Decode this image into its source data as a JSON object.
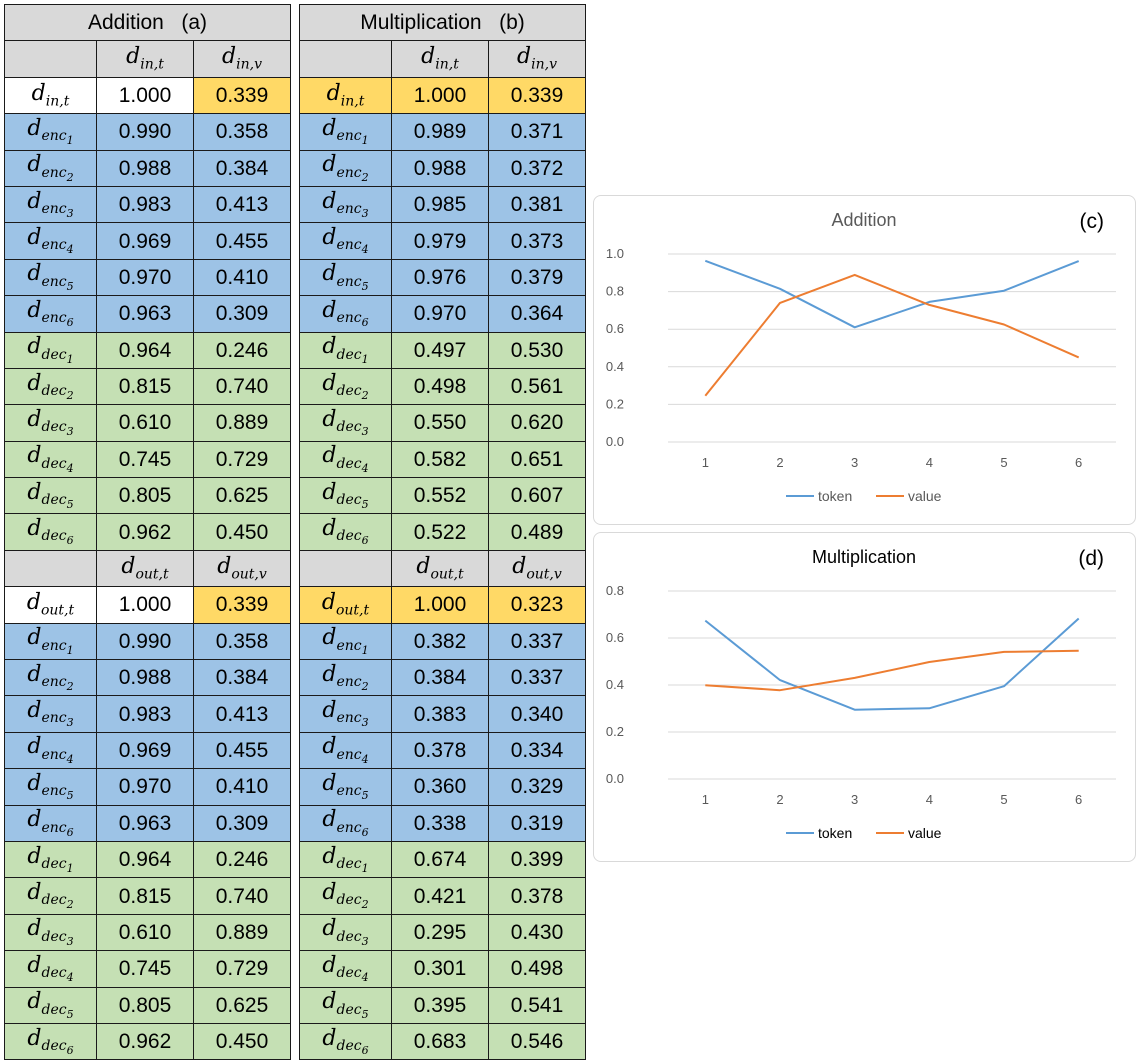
{
  "tables": [
    {
      "title": "Addition",
      "label": "(a)",
      "sections": [
        {
          "col_headers": [
            {
              "b": "d",
              "s1": "in,t"
            },
            {
              "b": "d",
              "s1": "in,v"
            }
          ],
          "rows": [
            {
              "sym": {
                "b": "d",
                "s1": "in,t"
              },
              "t": "1.000",
              "v": "0.339",
              "row": "white",
              "tcell": "white",
              "vcell": "orange"
            },
            {
              "sym": {
                "b": "d",
                "s1": "enc",
                "s2": "1"
              },
              "t": "0.990",
              "v": "0.358",
              "row": "blue"
            },
            {
              "sym": {
                "b": "d",
                "s1": "enc",
                "s2": "2"
              },
              "t": "0.988",
              "v": "0.384",
              "row": "blue"
            },
            {
              "sym": {
                "b": "d",
                "s1": "enc",
                "s2": "3"
              },
              "t": "0.983",
              "v": "0.413",
              "row": "blue"
            },
            {
              "sym": {
                "b": "d",
                "s1": "enc",
                "s2": "4"
              },
              "t": "0.969",
              "v": "0.455",
              "row": "blue"
            },
            {
              "sym": {
                "b": "d",
                "s1": "enc",
                "s2": "5"
              },
              "t": "0.970",
              "v": "0.410",
              "row": "blue"
            },
            {
              "sym": {
                "b": "d",
                "s1": "enc",
                "s2": "6"
              },
              "t": "0.963",
              "v": "0.309",
              "row": "blue"
            },
            {
              "sym": {
                "b": "d",
                "s1": "dec",
                "s2": "1"
              },
              "t": "0.964",
              "v": "0.246",
              "row": "green"
            },
            {
              "sym": {
                "b": "d",
                "s1": "dec",
                "s2": "2"
              },
              "t": "0.815",
              "v": "0.740",
              "row": "green"
            },
            {
              "sym": {
                "b": "d",
                "s1": "dec",
                "s2": "3"
              },
              "t": "0.610",
              "v": "0.889",
              "row": "green"
            },
            {
              "sym": {
                "b": "d",
                "s1": "dec",
                "s2": "4"
              },
              "t": "0.745",
              "v": "0.729",
              "row": "green"
            },
            {
              "sym": {
                "b": "d",
                "s1": "dec",
                "s2": "5"
              },
              "t": "0.805",
              "v": "0.625",
              "row": "green"
            },
            {
              "sym": {
                "b": "d",
                "s1": "dec",
                "s2": "6"
              },
              "t": "0.962",
              "v": "0.450",
              "row": "green"
            }
          ]
        },
        {
          "col_headers": [
            {
              "b": "d",
              "s1": "out,t"
            },
            {
              "b": "d",
              "s1": "out,v"
            }
          ],
          "rows": [
            {
              "sym": {
                "b": "d",
                "s1": "out,t"
              },
              "t": "1.000",
              "v": "0.339",
              "row": "white",
              "tcell": "white",
              "vcell": "orange"
            },
            {
              "sym": {
                "b": "d",
                "s1": "enc",
                "s2": "1"
              },
              "t": "0.990",
              "v": "0.358",
              "row": "blue"
            },
            {
              "sym": {
                "b": "d",
                "s1": "enc",
                "s2": "2"
              },
              "t": "0.988",
              "v": "0.384",
              "row": "blue"
            },
            {
              "sym": {
                "b": "d",
                "s1": "enc",
                "s2": "3"
              },
              "t": "0.983",
              "v": "0.413",
              "row": "blue"
            },
            {
              "sym": {
                "b": "d",
                "s1": "enc",
                "s2": "4"
              },
              "t": "0.969",
              "v": "0.455",
              "row": "blue"
            },
            {
              "sym": {
                "b": "d",
                "s1": "enc",
                "s2": "5"
              },
              "t": "0.970",
              "v": "0.410",
              "row": "blue"
            },
            {
              "sym": {
                "b": "d",
                "s1": "enc",
                "s2": "6"
              },
              "t": "0.963",
              "v": "0.309",
              "row": "blue"
            },
            {
              "sym": {
                "b": "d",
                "s1": "dec",
                "s2": "1"
              },
              "t": "0.964",
              "v": "0.246",
              "row": "green"
            },
            {
              "sym": {
                "b": "d",
                "s1": "dec",
                "s2": "2"
              },
              "t": "0.815",
              "v": "0.740",
              "row": "green"
            },
            {
              "sym": {
                "b": "d",
                "s1": "dec",
                "s2": "3"
              },
              "t": "0.610",
              "v": "0.889",
              "row": "green"
            },
            {
              "sym": {
                "b": "d",
                "s1": "dec",
                "s2": "4"
              },
              "t": "0.745",
              "v": "0.729",
              "row": "green"
            },
            {
              "sym": {
                "b": "d",
                "s1": "dec",
                "s2": "5"
              },
              "t": "0.805",
              "v": "0.625",
              "row": "green"
            },
            {
              "sym": {
                "b": "d",
                "s1": "dec",
                "s2": "6"
              },
              "t": "0.962",
              "v": "0.450",
              "row": "green"
            }
          ]
        }
      ]
    },
    {
      "title": "Multiplication",
      "label": "(b)",
      "sections": [
        {
          "col_headers": [
            {
              "b": "d",
              "s1": "in,t"
            },
            {
              "b": "d",
              "s1": "in,v"
            }
          ],
          "rows": [
            {
              "sym": {
                "b": "d",
                "s1": "in,t"
              },
              "t": "1.000",
              "v": "0.339",
              "row": "orange"
            },
            {
              "sym": {
                "b": "d",
                "s1": "enc",
                "s2": "1"
              },
              "t": "0.989",
              "v": "0.371",
              "row": "blue"
            },
            {
              "sym": {
                "b": "d",
                "s1": "enc",
                "s2": "2"
              },
              "t": "0.988",
              "v": "0.372",
              "row": "blue"
            },
            {
              "sym": {
                "b": "d",
                "s1": "enc",
                "s2": "3"
              },
              "t": "0.985",
              "v": "0.381",
              "row": "blue"
            },
            {
              "sym": {
                "b": "d",
                "s1": "enc",
                "s2": "4"
              },
              "t": "0.979",
              "v": "0.373",
              "row": "blue"
            },
            {
              "sym": {
                "b": "d",
                "s1": "enc",
                "s2": "5"
              },
              "t": "0.976",
              "v": "0.379",
              "row": "blue"
            },
            {
              "sym": {
                "b": "d",
                "s1": "enc",
                "s2": "6"
              },
              "t": "0.970",
              "v": "0.364",
              "row": "blue"
            },
            {
              "sym": {
                "b": "d",
                "s1": "dec",
                "s2": "1"
              },
              "t": "0.497",
              "v": "0.530",
              "row": "green"
            },
            {
              "sym": {
                "b": "d",
                "s1": "dec",
                "s2": "2"
              },
              "t": "0.498",
              "v": "0.561",
              "row": "green"
            },
            {
              "sym": {
                "b": "d",
                "s1": "dec",
                "s2": "3"
              },
              "t": "0.550",
              "v": "0.620",
              "row": "green"
            },
            {
              "sym": {
                "b": "d",
                "s1": "dec",
                "s2": "4"
              },
              "t": "0.582",
              "v": "0.651",
              "row": "green"
            },
            {
              "sym": {
                "b": "d",
                "s1": "dec",
                "s2": "5"
              },
              "t": "0.552",
              "v": "0.607",
              "row": "green"
            },
            {
              "sym": {
                "b": "d",
                "s1": "dec",
                "s2": "6"
              },
              "t": "0.522",
              "v": "0.489",
              "row": "green"
            }
          ]
        },
        {
          "col_headers": [
            {
              "b": "d",
              "s1": "out,t"
            },
            {
              "b": "d",
              "s1": "out,v"
            }
          ],
          "rows": [
            {
              "sym": {
                "b": "d",
                "s1": "out,t"
              },
              "t": "1.000",
              "v": "0.323",
              "row": "orange"
            },
            {
              "sym": {
                "b": "d",
                "s1": "enc",
                "s2": "1"
              },
              "t": "0.382",
              "v": "0.337",
              "row": "blue"
            },
            {
              "sym": {
                "b": "d",
                "s1": "enc",
                "s2": "2"
              },
              "t": "0.384",
              "v": "0.337",
              "row": "blue"
            },
            {
              "sym": {
                "b": "d",
                "s1": "enc",
                "s2": "3"
              },
              "t": "0.383",
              "v": "0.340",
              "row": "blue"
            },
            {
              "sym": {
                "b": "d",
                "s1": "enc",
                "s2": "4"
              },
              "t": "0.378",
              "v": "0.334",
              "row": "blue"
            },
            {
              "sym": {
                "b": "d",
                "s1": "enc",
                "s2": "5"
              },
              "t": "0.360",
              "v": "0.329",
              "row": "blue"
            },
            {
              "sym": {
                "b": "d",
                "s1": "enc",
                "s2": "6"
              },
              "t": "0.338",
              "v": "0.319",
              "row": "blue"
            },
            {
              "sym": {
                "b": "d",
                "s1": "dec",
                "s2": "1"
              },
              "t": "0.674",
              "v": "0.399",
              "row": "green"
            },
            {
              "sym": {
                "b": "d",
                "s1": "dec",
                "s2": "2"
              },
              "t": "0.421",
              "v": "0.378",
              "row": "green"
            },
            {
              "sym": {
                "b": "d",
                "s1": "dec",
                "s2": "3"
              },
              "t": "0.295",
              "v": "0.430",
              "row": "green"
            },
            {
              "sym": {
                "b": "d",
                "s1": "dec",
                "s2": "4"
              },
              "t": "0.301",
              "v": "0.498",
              "row": "green"
            },
            {
              "sym": {
                "b": "d",
                "s1": "dec",
                "s2": "5"
              },
              "t": "0.395",
              "v": "0.541",
              "row": "green"
            },
            {
              "sym": {
                "b": "d",
                "s1": "dec",
                "s2": "6"
              },
              "t": "0.683",
              "v": "0.546",
              "row": "green"
            }
          ]
        }
      ]
    }
  ],
  "colors": {
    "blue": "#9dc3e6",
    "green": "#c5e0b4",
    "orange": "#ffd966",
    "white": "#ffffff",
    "header": "#d9d9d9",
    "token_line": "#5b9bd5",
    "value_line": "#ed7d31",
    "gridline": "#d9d9d9"
  },
  "chart_data": [
    {
      "type": "line",
      "title": "Addition",
      "panel_label": "(c)",
      "x": [
        "1",
        "2",
        "3",
        "4",
        "5",
        "6"
      ],
      "series": [
        {
          "name": "token",
          "values": [
            0.964,
            0.815,
            0.61,
            0.745,
            0.805,
            0.962
          ]
        },
        {
          "name": "value",
          "values": [
            0.246,
            0.74,
            0.889,
            0.729,
            0.625,
            0.45
          ]
        }
      ],
      "yticks": [
        "0.0",
        "0.2",
        "0.4",
        "0.6",
        "0.8",
        "1.0"
      ],
      "ylim": [
        0,
        1.0
      ],
      "grid": true,
      "legend": "bottom"
    },
    {
      "type": "line",
      "title": "Multiplication",
      "panel_label": "(d)",
      "x": [
        "1",
        "2",
        "3",
        "4",
        "5",
        "6"
      ],
      "series": [
        {
          "name": "token",
          "values": [
            0.674,
            0.421,
            0.295,
            0.301,
            0.395,
            0.683
          ]
        },
        {
          "name": "value",
          "values": [
            0.399,
            0.378,
            0.43,
            0.498,
            0.541,
            0.546
          ]
        }
      ],
      "yticks": [
        "0.0",
        "0.2",
        "0.4",
        "0.6",
        "0.8"
      ],
      "ylim": [
        0,
        0.8
      ],
      "grid": true,
      "legend": "bottom"
    }
  ]
}
